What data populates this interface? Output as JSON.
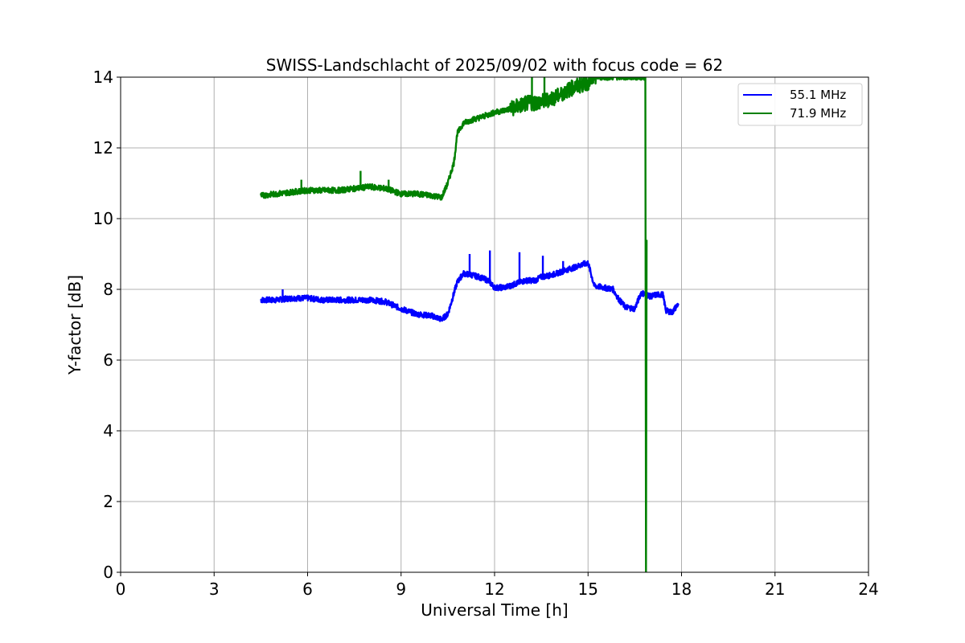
{
  "chart_data": {
    "type": "line",
    "title": "SWISS-Landschlacht of 2025/09/02 with focus code = 62",
    "xlabel": "Universal Time [h]",
    "ylabel": "Y-factor [dB]",
    "xlim": [
      0,
      24
    ],
    "ylim": [
      0,
      14
    ],
    "xticks": [
      0,
      3,
      6,
      9,
      12,
      15,
      18,
      21,
      24
    ],
    "yticks": [
      0,
      2,
      4,
      6,
      8,
      10,
      12,
      14
    ],
    "grid": true,
    "legend_position": "top-right",
    "series": [
      {
        "name": "55.1 MHz",
        "color": "#0000ff",
        "x": [
          4.5,
          5.0,
          5.5,
          6.0,
          6.5,
          7.0,
          7.5,
          8.0,
          8.5,
          9.0,
          9.5,
          10.0,
          10.3,
          10.5,
          10.8,
          11.0,
          11.3,
          11.5,
          11.8,
          12.0,
          12.3,
          12.5,
          12.8,
          13.0,
          13.3,
          13.5,
          13.8,
          14.0,
          14.3,
          14.5,
          14.8,
          15.0,
          15.2,
          15.5,
          15.8,
          16.0,
          16.2,
          16.5,
          16.7,
          16.9,
          17.0,
          17.2,
          17.4,
          17.5,
          17.7,
          17.9
        ],
        "y": [
          7.7,
          7.7,
          7.75,
          7.75,
          7.7,
          7.7,
          7.7,
          7.7,
          7.65,
          7.45,
          7.3,
          7.25,
          7.15,
          7.3,
          8.2,
          8.45,
          8.4,
          8.35,
          8.25,
          8.05,
          8.05,
          8.1,
          8.2,
          8.25,
          8.25,
          8.35,
          8.4,
          8.45,
          8.55,
          8.6,
          8.7,
          8.75,
          8.1,
          8.05,
          8.0,
          7.7,
          7.5,
          7.45,
          7.9,
          7.85,
          7.8,
          7.85,
          7.85,
          7.4,
          7.35,
          7.6
        ]
      },
      {
        "name": "71.9 MHz",
        "color": "#008000",
        "x": [
          4.5,
          5.0,
          5.5,
          6.0,
          6.5,
          7.0,
          7.5,
          8.0,
          8.5,
          9.0,
          9.5,
          10.0,
          10.3,
          10.5,
          10.7,
          10.8,
          11.0,
          11.3,
          11.5,
          12.0,
          12.5,
          13.0,
          13.5,
          14.0,
          14.5,
          15.0,
          15.2,
          16.84,
          16.86,
          16.88
        ],
        "y": [
          10.65,
          10.7,
          10.75,
          10.8,
          10.8,
          10.8,
          10.85,
          10.9,
          10.85,
          10.7,
          10.7,
          10.65,
          10.6,
          11.0,
          11.6,
          12.4,
          12.7,
          12.8,
          12.85,
          13.0,
          13.1,
          13.25,
          13.3,
          13.45,
          13.7,
          13.85,
          14.0,
          14.0,
          0.0,
          9.4
        ]
      }
    ],
    "spikes": [
      {
        "series": 0,
        "x": 5.2,
        "y": 8.0
      },
      {
        "series": 0,
        "x": 11.2,
        "y": 9.0
      },
      {
        "series": 0,
        "x": 11.85,
        "y": 9.1
      },
      {
        "series": 0,
        "x": 12.8,
        "y": 9.05
      },
      {
        "series": 0,
        "x": 13.55,
        "y": 8.95
      },
      {
        "series": 0,
        "x": 14.2,
        "y": 8.8
      },
      {
        "series": 1,
        "x": 5.8,
        "y": 11.1
      },
      {
        "series": 1,
        "x": 7.7,
        "y": 11.35
      },
      {
        "series": 1,
        "x": 8.6,
        "y": 11.1
      },
      {
        "series": 1,
        "x": 13.2,
        "y": 14.0
      },
      {
        "series": 1,
        "x": 13.6,
        "y": 14.0
      }
    ]
  }
}
